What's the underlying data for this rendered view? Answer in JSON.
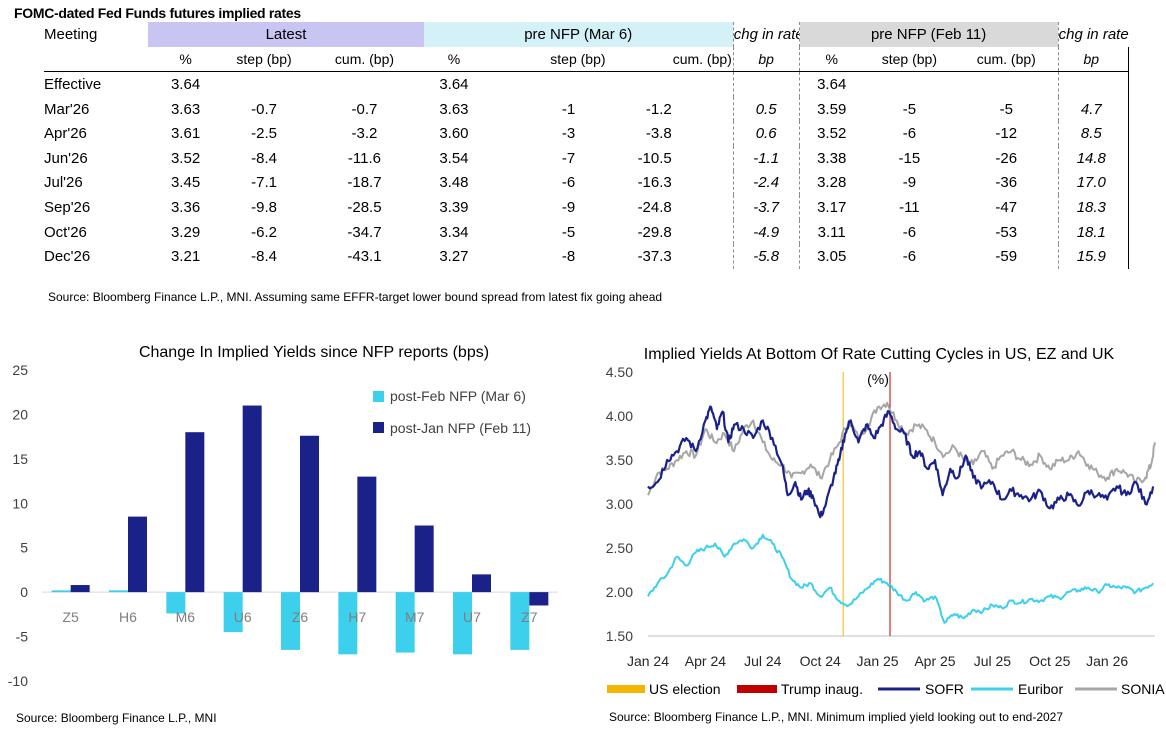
{
  "table": {
    "title": "FOMC-dated Fed Funds futures implied rates",
    "header1": {
      "meeting": "Meeting",
      "latest": "Latest",
      "pre_nfp_mar": "pre NFP (Mar 6)",
      "chg1": "chg in rate",
      "pre_nfp_feb": "pre NFP (Feb 11)",
      "chg2": "chg in rate"
    },
    "header2": {
      "pct1": "%",
      "step1": "step (bp)",
      "cum1": "cum. (bp)",
      "pct2": "%",
      "step2": "step (bp)",
      "cum2": "cum. (bp)",
      "bp1": "bp",
      "pct3": "%",
      "step3": "step (bp)",
      "cum3": "cum. (bp)",
      "bp2": "bp"
    },
    "rows": [
      {
        "meeting": "Effective",
        "l_pct": "3.64",
        "l_step": "",
        "l_cum": "",
        "m_pct": "3.64",
        "m_step": "",
        "m_cum": "",
        "m_chg": "",
        "f_pct": "3.64",
        "f_step": "",
        "f_cum": "",
        "f_chg": ""
      },
      {
        "meeting": "Mar'26",
        "l_pct": "3.63",
        "l_step": "-0.7",
        "l_cum": "-0.7",
        "m_pct": "3.63",
        "m_step": "-1",
        "m_cum": "-1.2",
        "m_chg": "0.5",
        "f_pct": "3.59",
        "f_step": "-5",
        "f_cum": "-5",
        "f_chg": "4.7"
      },
      {
        "meeting": "Apr'26",
        "l_pct": "3.61",
        "l_step": "-2.5",
        "l_cum": "-3.2",
        "m_pct": "3.60",
        "m_step": "-3",
        "m_cum": "-3.8",
        "m_chg": "0.6",
        "f_pct": "3.52",
        "f_step": "-6",
        "f_cum": "-12",
        "f_chg": "8.5"
      },
      {
        "meeting": "Jun'26",
        "l_pct": "3.52",
        "l_step": "-8.4",
        "l_cum": "-11.6",
        "m_pct": "3.54",
        "m_step": "-7",
        "m_cum": "-10.5",
        "m_chg": "-1.1",
        "f_pct": "3.38",
        "f_step": "-15",
        "f_cum": "-26",
        "f_chg": "14.8"
      },
      {
        "meeting": "Jul'26",
        "l_pct": "3.45",
        "l_step": "-7.1",
        "l_cum": "-18.7",
        "m_pct": "3.48",
        "m_step": "-6",
        "m_cum": "-16.3",
        "m_chg": "-2.4",
        "f_pct": "3.28",
        "f_step": "-9",
        "f_cum": "-36",
        "f_chg": "17.0"
      },
      {
        "meeting": "Sep'26",
        "l_pct": "3.36",
        "l_step": "-9.8",
        "l_cum": "-28.5",
        "m_pct": "3.39",
        "m_step": "-9",
        "m_cum": "-24.8",
        "m_chg": "-3.7",
        "f_pct": "3.17",
        "f_step": "-11",
        "f_cum": "-47",
        "f_chg": "18.3"
      },
      {
        "meeting": "Oct'26",
        "l_pct": "3.29",
        "l_step": "-6.2",
        "l_cum": "-34.7",
        "m_pct": "3.34",
        "m_step": "-5",
        "m_cum": "-29.8",
        "m_chg": "-4.9",
        "f_pct": "3.11",
        "f_step": "-6",
        "f_cum": "-53",
        "f_chg": "18.1"
      },
      {
        "meeting": "Dec'26",
        "l_pct": "3.21",
        "l_step": "-8.4",
        "l_cum": "-43.1",
        "m_pct": "3.27",
        "m_step": "-8",
        "m_cum": "-37.3",
        "m_chg": "-5.8",
        "f_pct": "3.05",
        "f_step": "-6",
        "f_cum": "-59",
        "f_chg": "15.9"
      }
    ],
    "source": "Source: Bloomberg Finance L.P., MNI. Assuming same  EFFR-target lower bound spread from latest fix going ahead"
  },
  "colors": {
    "latest_bg": "#c9c5f2",
    "nfp_mar_bg": "#d4f1f7",
    "nfp_feb_bg": "#d9d9d9",
    "light_bar": "#3cd0ec",
    "dark_bar": "#1a2189",
    "sofr": "#1a2189",
    "euribor": "#3cd0ec",
    "sonia": "#a6a6a6",
    "us_election": "#f2b600",
    "trump_inaug": "#c00000"
  },
  "chart_data": [
    {
      "type": "bar",
      "title": "Change In Implied Yields since NFP reports (bps)",
      "categories": [
        "Z5",
        "H6",
        "M6",
        "U6",
        "Z6",
        "H7",
        "M7",
        "U7",
        "Z7"
      ],
      "series": [
        {
          "name": "post-Feb NFP (Mar 6)",
          "color": "#3cd0ec",
          "values": [
            0.2,
            0.2,
            -2.4,
            -4.5,
            -6.5,
            -7.0,
            -6.8,
            -7.0,
            -6.5
          ]
        },
        {
          "name": "post-Jan NFP (Feb 11)",
          "color": "#1a2189",
          "values": [
            0.8,
            8.5,
            18.0,
            21.0,
            17.6,
            13.0,
            7.5,
            2.0,
            -1.5
          ]
        }
      ],
      "ylim": [
        -10,
        25
      ],
      "yticks": [
        -10,
        -5,
        0,
        5,
        10,
        15,
        20,
        25
      ],
      "xlabel": "",
      "ylabel": "",
      "legend": "top-right",
      "source": "Source: Bloomberg Finance L.P., MNI"
    },
    {
      "type": "line",
      "title": "Implied Yields At Bottom Of Rate Cutting Cycles in US, EZ and UK",
      "subtitle": "(%)",
      "xticks": [
        "Jan 24",
        "Apr 24",
        "Jul 24",
        "Oct 24",
        "Jan 25",
        "Apr 25",
        "Jul 25",
        "Oct 25",
        "Jan 26"
      ],
      "xlim_months": [
        0,
        26.5
      ],
      "ylim": [
        1.5,
        4.5
      ],
      "yticks": [
        "1.50",
        "2.00",
        "2.50",
        "3.00",
        "3.50",
        "4.00",
        "4.50"
      ],
      "events": [
        {
          "name": "US election",
          "month": 10.2,
          "color": "#f2b600"
        },
        {
          "name": "Trump inaug.",
          "month": 12.65,
          "color": "#c00000"
        }
      ],
      "series": [
        {
          "name": "SOFR",
          "color": "#1a2189",
          "months": [
            0,
            0.5,
            1,
            1.5,
            2,
            2.5,
            3,
            3.3,
            3.6,
            3.9,
            4.2,
            4.5,
            5,
            5.5,
            6,
            6.5,
            7,
            7.3,
            7.7,
            8,
            8.3,
            8.6,
            9,
            9.3,
            9.7,
            10,
            10.3,
            10.6,
            11,
            11.4,
            11.8,
            12.2,
            12.6,
            13,
            13.4,
            13.8,
            14.2,
            14.6,
            15,
            15.4,
            15.8,
            16.2,
            16.6,
            17,
            17.5,
            18,
            18.5,
            19,
            19.5,
            20,
            20.5,
            21,
            21.5,
            22,
            22.5,
            23,
            23.5,
            24,
            24.5,
            25,
            25.5,
            26,
            26.4
          ],
          "values": [
            3.2,
            3.25,
            3.5,
            3.6,
            3.75,
            3.6,
            3.95,
            4.1,
            3.85,
            4.05,
            3.7,
            3.9,
            3.85,
            3.75,
            3.95,
            3.75,
            3.45,
            3.1,
            3.25,
            3.05,
            3.15,
            3.1,
            2.85,
            3.0,
            3.3,
            3.5,
            3.8,
            3.95,
            3.7,
            3.9,
            3.75,
            3.9,
            4.05,
            3.85,
            3.8,
            3.55,
            3.6,
            3.4,
            3.5,
            3.1,
            3.4,
            3.3,
            3.55,
            3.3,
            3.2,
            3.25,
            3.05,
            3.15,
            3.1,
            3.05,
            3.15,
            2.95,
            3.05,
            3.1,
            2.98,
            3.15,
            3.1,
            3.05,
            3.2,
            3.1,
            3.25,
            3.0,
            3.2
          ]
        },
        {
          "name": "Euribor",
          "color": "#3cd0ec",
          "months": [
            0,
            0.5,
            1,
            1.5,
            2,
            2.5,
            3,
            3.5,
            4,
            4.5,
            5,
            5.5,
            6,
            6.5,
            7,
            7.5,
            8,
            8.5,
            9,
            9.5,
            10,
            10.5,
            11,
            11.5,
            12,
            12.5,
            13,
            13.5,
            14,
            14.5,
            15,
            15.5,
            16,
            16.5,
            17,
            17.5,
            18,
            18.5,
            19,
            19.5,
            20,
            20.5,
            21,
            21.5,
            22,
            22.5,
            23,
            23.5,
            24,
            24.5,
            25,
            25.5,
            26,
            26.4
          ],
          "values": [
            1.95,
            2.1,
            2.2,
            2.4,
            2.3,
            2.45,
            2.5,
            2.55,
            2.4,
            2.55,
            2.6,
            2.5,
            2.65,
            2.55,
            2.4,
            2.15,
            2.05,
            2.1,
            1.95,
            2.05,
            1.9,
            1.85,
            1.95,
            2.05,
            2.15,
            2.1,
            2.0,
            1.9,
            2.0,
            1.9,
            1.95,
            1.65,
            1.75,
            1.7,
            1.8,
            1.78,
            1.85,
            1.82,
            1.9,
            1.88,
            1.92,
            1.9,
            1.95,
            1.93,
            2.0,
            2.02,
            2.05,
            2.0,
            2.08,
            2.05,
            2.05,
            2.0,
            2.05,
            2.1
          ]
        },
        {
          "name": "SONIA",
          "color": "#a6a6a6",
          "months": [
            0,
            0.5,
            1,
            1.5,
            2,
            2.5,
            3,
            3.5,
            4,
            4.5,
            5,
            5.5,
            6,
            6.5,
            7,
            7.5,
            8,
            8.5,
            9,
            9.5,
            10,
            10.5,
            11,
            11.5,
            12,
            12.5,
            13,
            13.5,
            14,
            14.5,
            15,
            15.5,
            16,
            16.5,
            17,
            17.5,
            18,
            18.5,
            19,
            19.5,
            20,
            20.5,
            21,
            21.5,
            22,
            22.5,
            23,
            23.5,
            24,
            24.5,
            25,
            25.5,
            26,
            26.3,
            26.5
          ],
          "values": [
            3.1,
            3.35,
            3.4,
            3.5,
            3.6,
            3.55,
            3.85,
            3.7,
            3.8,
            3.6,
            3.85,
            3.95,
            3.7,
            3.5,
            3.45,
            3.3,
            3.35,
            3.45,
            3.3,
            3.5,
            3.7,
            3.95,
            3.75,
            3.9,
            4.1,
            4.15,
            3.95,
            3.8,
            3.9,
            3.85,
            3.7,
            3.55,
            3.65,
            3.5,
            3.45,
            3.6,
            3.4,
            3.55,
            3.6,
            3.5,
            3.45,
            3.55,
            3.4,
            3.5,
            3.5,
            3.6,
            3.45,
            3.35,
            3.3,
            3.4,
            3.35,
            3.25,
            3.3,
            3.45,
            3.7
          ]
        }
      ],
      "source": "Source: Bloomberg Finance L.P., MNI. Minimum implied yield looking out to end-2027"
    }
  ]
}
